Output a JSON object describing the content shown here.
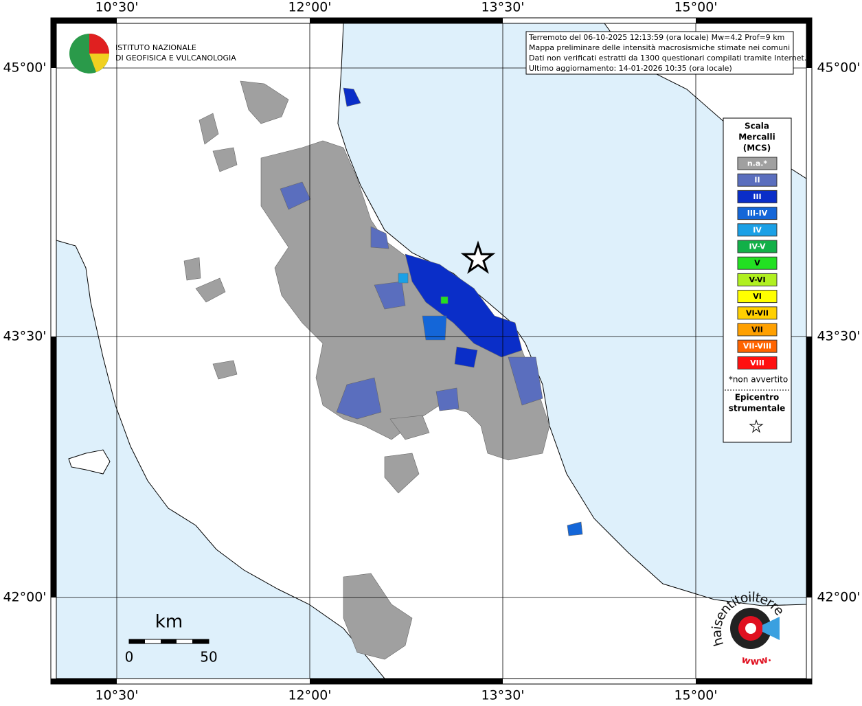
{
  "map": {
    "lon_labels": [
      "10°30'",
      "12°00'",
      "13°30'",
      "15°00'"
    ],
    "lat_labels": [
      "45°00'",
      "43°30'",
      "42°00'"
    ],
    "info_box": [
      "Terremoto del 06-10-2025 12:13:59 (ora locale) Mw=4.2 Prof=9 km",
      "Mappa preliminare delle intensità macrosismiche stimate nei comuni",
      "Dati non verificati estratti da 1300 questionari compilati tramite Internet.",
      "Ultimo aggiornamento: 14-01-2026 10:35 (ora locale)"
    ],
    "logo": [
      "ISTITUTO NAZIONALE",
      "DI GEOFISICA E VULCANOLOGIA"
    ],
    "legend": {
      "title": [
        "Scala",
        "Mercalli",
        "(MCS)"
      ],
      "items": [
        {
          "label": "n.a.*",
          "color": "#a0a0a0"
        },
        {
          "label": "II",
          "color": "#5a6ebe"
        },
        {
          "label": "III",
          "color": "#0a2ec8"
        },
        {
          "label": "III-IV",
          "color": "#1466d8"
        },
        {
          "label": "IV",
          "color": "#1aa0e6"
        },
        {
          "label": "IV-V",
          "color": "#12b048"
        },
        {
          "label": "V",
          "color": "#22e022"
        },
        {
          "label": "V-VI",
          "color": "#b0f020"
        },
        {
          "label": "VI",
          "color": "#ffff00"
        },
        {
          "label": "VI-VII",
          "color": "#ffd000"
        },
        {
          "label": "VII",
          "color": "#ffa000"
        },
        {
          "label": "VII-VIII",
          "color": "#ff6400"
        },
        {
          "label": "VIII",
          "color": "#ff1010"
        }
      ],
      "note": "*non avvertito",
      "epicenter": [
        "Epicentro",
        "strumentale"
      ]
    },
    "scale_bar": {
      "unit": "km",
      "labels": [
        0,
        50
      ]
    },
    "watermark": {
      "site": "haisentitoilterremoto.it",
      "prefix": "www."
    }
  }
}
